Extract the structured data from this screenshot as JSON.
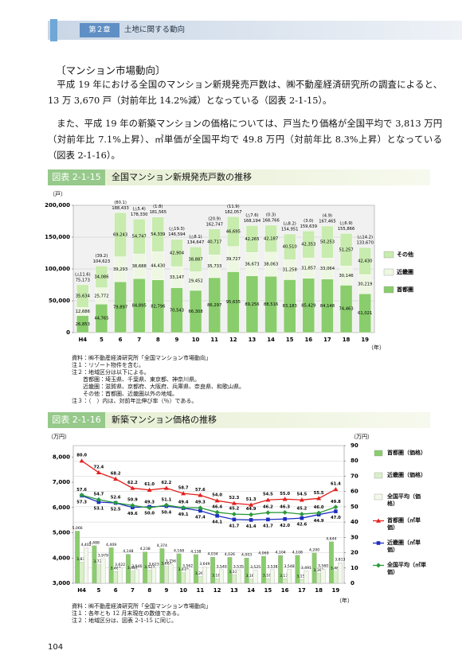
{
  "header": {
    "chapter": "第２章",
    "title": "土地に関する動向"
  },
  "section_heading": "〔マンション市場動向〕",
  "paragraphs": [
    "平成 19 年における全国のマンション新規発売戸数は、㈱不動産経済研究所の調査によると、13 万 3,670 戸（対前年比 14.2%減）となっている（図表 2-1-15）。",
    "また、平成 19 年の新築マンションの価格については、戸当たり価格が全国平均で 3,813 万円（対前年比 7.1%上昇）、㎡単価が全国平均で 49.8 万円（対前年比 8.3%上昇）となっている（図表 2-1-16）。"
  ],
  "page_number": "104",
  "chart_data": [
    {
      "type": "stacked_bar",
      "figure_label": "図表 2-1-15",
      "title": "全国マンション新規発売戸数の推移",
      "y_unit": "（戸）",
      "x_unit": "（年）",
      "categories": [
        "H4",
        "5",
        "6",
        "7",
        "8",
        "9",
        "10",
        "11",
        "12",
        "13",
        "14",
        "15",
        "16",
        "17",
        "18",
        "19"
      ],
      "series": [
        {
          "name": "首都圏",
          "color": "#8acd6c",
          "values": [
            26853,
            44765,
            79897,
            84895,
            82796,
            70543,
            66308,
            86297,
            95635,
            89256,
            88516,
            83183,
            85429,
            84148,
            74463,
            61021
          ],
          "value_labels": [
            "26,853",
            "44,765",
            "79,897",
            "84,895",
            "82,796",
            "70,543",
            "66,308",
            "86,297",
            "95,635",
            "89,256",
            "88,516",
            "83,183",
            "85,429",
            "84,148",
            "74,463",
            "61,021"
          ]
        },
        {
          "name": "近畿圏",
          "color": "#eef7e2",
          "values": [
            12686,
            25772,
            39293,
            38688,
            44430,
            33147,
            29452,
            35733,
            39727,
            36673,
            38063,
            31258,
            31857,
            33064,
            30146,
            30219
          ],
          "value_labels": [
            "12,686",
            "25,772",
            "39,293",
            "38,688",
            "44,430",
            "33,147",
            "29,452",
            "35,733",
            "39,727",
            "36,673",
            "38,063",
            "31,258",
            "31,857",
            "33,064",
            "30,146",
            "30,219"
          ]
        },
        {
          "name": "その他",
          "color": "#c8ebae",
          "values": [
            35634,
            34086,
            69243,
            54747,
            54339,
            42904,
            38887,
            40717,
            46695,
            42265,
            42187,
            40510,
            42353,
            50253,
            51257,
            42430
          ],
          "value_labels": [
            "35,634",
            "34,086",
            "69,243",
            "54,747",
            "54,339",
            "42,904",
            "38,887",
            "40,717",
            "46,695",
            "42,265",
            "42,187",
            "40,510",
            "42,353",
            "50,253",
            "51,257",
            "42,430"
          ]
        }
      ],
      "totals": [
        75173,
        104623,
        188433,
        178330,
        181565,
        146594,
        134647,
        162747,
        182057,
        168194,
        168766,
        154951,
        159639,
        167465,
        155866,
        133670
      ],
      "total_labels": [
        "75,173",
        "104,623",
        "188,433",
        "178,330",
        "181,565",
        "146,594",
        "134,647",
        "162,747",
        "182,057",
        "168,194",
        "168,766",
        "154,951",
        "159,639",
        "167,465",
        "155,866",
        "133,670"
      ],
      "change_labels": [
        "(△11.6)",
        "(39.2)",
        "(80.1)",
        "(△5.4)",
        "(1.8)",
        "(△19.3)",
        "(△8.1)",
        "(20.9)",
        "(11.9)",
        "(△7.6)",
        "(0.3)",
        "(△8.2)",
        "(3.0)",
        "(4.9)",
        "(△6.9)",
        "(△14.2)"
      ],
      "ylim": [
        0,
        200000
      ],
      "yticks": [
        0,
        {
          "value": 50000,
          "label": "50,000"
        },
        {
          "value": 100000,
          "label": "100,000"
        },
        {
          "value": 150000,
          "label": "150,000"
        },
        {
          "value": 200000,
          "label": "200,000"
        }
      ],
      "grid": true,
      "legend": "right",
      "notes": [
        "資料：㈱不動産経済研究所「全国マンション市場動向」",
        "注１：リゾート物件を含む。",
        "注２：地域区分は以下による。",
        "　　首都圏：埼玉県、千葉県、東京都、神奈川県。",
        "　　近畿圏：滋賀県、京都府、大阪府、兵庫県、奈良県、和歌山県。",
        "　　その他：首都圏、近畿圏以外の地域。",
        "注３：（　）内は、対前年比伸び率（％）である。"
      ]
    },
    {
      "type": "bar_line",
      "figure_label": "図表 2-1-16",
      "title": "新築マンション価格の推移",
      "y_unit": "（万円）",
      "y2_unit": "（万円）",
      "x_unit": "（年）",
      "categories": [
        "H4",
        "5",
        "6",
        "7",
        "8",
        "9",
        "10",
        "11",
        "12",
        "13",
        "14",
        "15",
        "16",
        "17",
        "18",
        "19"
      ],
      "series": [
        {
          "name": "首都圏（価格）",
          "kind": "bar",
          "color": "#8acd6c",
          "values": [
            5066,
            4488,
            4409,
            4148,
            4238,
            4374,
            4168,
            4138,
            4034,
            4026,
            4003,
            4069,
            4104,
            4108,
            4200,
            4644
          ],
          "value_labels": [
            "5,066",
            "4,488",
            "4,409",
            "4,148",
            "4,238",
            "4,374",
            "4,168",
            "4,138",
            "4,034",
            "4,026",
            "4,003",
            "4,069",
            "4,104",
            "4,108",
            "4,200",
            "4,644"
          ]
        },
        {
          "name": "近畿圏（価格）",
          "kind": "bar",
          "color": "#d9efc9",
          "values": [
            3838,
            3737,
            3467,
            3487,
            3523,
            3667,
            3419,
            3265,
            3186,
            3337,
            3166,
            3186,
            3177,
            3154,
            3393,
            3480
          ],
          "value_labels": [
            "3,838",
            "3,737",
            "3,467",
            "3,487",
            "3,523",
            "3,667",
            "3,419",
            "3,265",
            "3,186",
            "3,337",
            "3,166",
            "3,186",
            "3,177",
            "3,154",
            "3,393",
            "3,480"
          ]
        },
        {
          "name": "全国平均（価格）",
          "kind": "bar",
          "color": "#f2f9ea",
          "values": [
            4402,
            3979,
            3622,
            3546,
            3623,
            3756,
            3562,
            3649,
            3540,
            3535,
            3525,
            3538,
            3548,
            3491,
            3560,
            3813
          ],
          "value_labels": [
            "4,402",
            "3,979",
            "3,622",
            "3,546",
            "3,623",
            "3,756",
            "3,562",
            "3,649",
            "3,540",
            "3,535",
            "3,525",
            "3,538",
            "3,548",
            "3,491",
            "3,560",
            "3,813"
          ]
        },
        {
          "name": "首都圏（㎡単価）",
          "kind": "line",
          "axis": "y2",
          "marker": "triangle",
          "color": "#e3201c",
          "values": [
            80.0,
            72.4,
            68.2,
            62.2,
            61.0,
            62.2,
            58.7,
            57.6,
            54.0,
            52.3,
            51.3,
            54.5,
            55.0,
            54.5,
            55.5,
            61.4
          ],
          "value_labels": [
            "80.0",
            "72.4",
            "68.2",
            "62.2",
            "61.0",
            "62.2",
            "58.7",
            "57.6",
            "54.0",
            "52.3",
            "51.3",
            "54.5",
            "55.0",
            "54.5",
            "55.5",
            "61.4"
          ]
        },
        {
          "name": "近畿圏（㎡単価）",
          "kind": "line",
          "axis": "y2",
          "marker": "square",
          "color": "#1d2fc0",
          "values": [
            57.3,
            53.1,
            52.5,
            49.6,
            50.0,
            50.4,
            49.1,
            47.4,
            44.1,
            41.7,
            41.4,
            41.7,
            42.0,
            42.6,
            44.9,
            47.0
          ],
          "value_labels": [
            "57.3",
            "53.1",
            "52.5",
            "49.6",
            "50.0",
            "50.4",
            "49.1",
            "47.4",
            "44.1",
            "41.7",
            "41.4",
            "41.7",
            "42.0",
            "42.6",
            "44.9",
            "47.0"
          ]
        },
        {
          "name": "全国平均（㎡単価）",
          "kind": "line",
          "axis": "y2",
          "marker": "diamond",
          "color": "#2a9a3a",
          "values": [
            57.6,
            54.7,
            52.6,
            50.9,
            49.3,
            51.1,
            49.4,
            49.3,
            46.4,
            45.2,
            44.9,
            46.2,
            46.3,
            45.2,
            46.0,
            49.8
          ],
          "value_labels": [
            "57.6",
            "54.7",
            "52.6",
            "50.9",
            "49.3",
            "51.1",
            "49.4",
            "49.3",
            "46.4",
            "45.2",
            "44.9",
            "46.2",
            "46.3",
            "45.2",
            "46.0",
            "49.8"
          ]
        }
      ],
      "ylim": [
        3000,
        8450
      ],
      "yticks": [
        {
          "value": 3000,
          "label": "3,000"
        },
        {
          "value": 4000,
          "label": "4,000"
        },
        {
          "value": 5000,
          "label": "5,000"
        },
        {
          "value": 6000,
          "label": "6,000"
        },
        {
          "value": 7000,
          "label": "7,000"
        },
        {
          "value": 8000,
          "label": "8,000"
        }
      ],
      "y2lim": [
        0,
        90
      ],
      "y2ticks": [
        0,
        10,
        20,
        30,
        40,
        50,
        60,
        70,
        80,
        90
      ],
      "grid": true,
      "legend": "right",
      "notes": [
        "資料：㈱不動産経済研究所「全国マンション市場動向」",
        "注１：各年とも 12 月末現在の数値である。",
        "注２：地域区分は、図表 2-1-15 に同じ。"
      ]
    }
  ]
}
